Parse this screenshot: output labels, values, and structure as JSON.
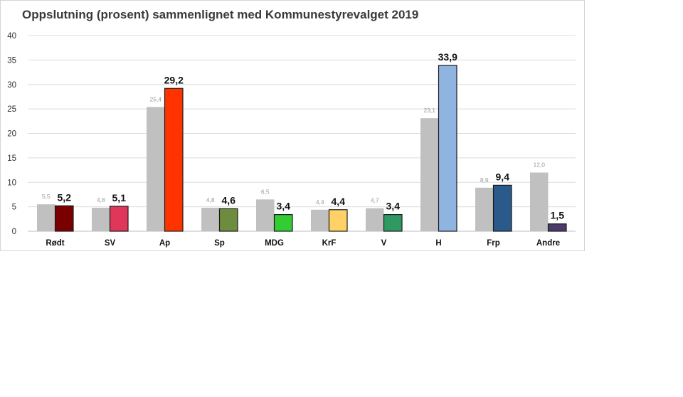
{
  "chart_data": {
    "type": "bar",
    "title": "Oppslutning (prosent) sammenlignet med Kommunestyrevalget 2019",
    "categories": [
      "Rødt",
      "SV",
      "Ap",
      "Sp",
      "MDG",
      "KrF",
      "V",
      "H",
      "Frp",
      "Andre"
    ],
    "series": [
      {
        "values": [
          5.5,
          4.8,
          25.4,
          4.8,
          6.5,
          4.4,
          4.7,
          23.1,
          8.9,
          12.0
        ],
        "labels": [
          "5,5",
          "4,8",
          "25,4",
          "4,8",
          "6,5",
          "4,4",
          "4,7",
          "23,1",
          "8,9",
          "12,0"
        ],
        "color": "#c0c0c0"
      },
      {
        "values": [
          5.2,
          5.1,
          29.2,
          4.6,
          3.4,
          4.4,
          3.4,
          33.9,
          9.4,
          1.5
        ],
        "labels": [
          "5,2",
          "5,1",
          "29,2",
          "4,6",
          "3,4",
          "4,4",
          "3,4",
          "33,9",
          "9,4",
          "1,5"
        ],
        "colors": [
          "#7a0000",
          "#e0365a",
          "#ff3300",
          "#6e8c3e",
          "#33cc33",
          "#ffd166",
          "#2e9a62",
          "#8fb4e0",
          "#2a5a8a",
          "#4b3b6b"
        ]
      }
    ],
    "ylim": [
      0,
      40
    ],
    "yticks": [
      0,
      5,
      10,
      15,
      20,
      25,
      30,
      35,
      40
    ],
    "grid": true,
    "legend": "none"
  }
}
